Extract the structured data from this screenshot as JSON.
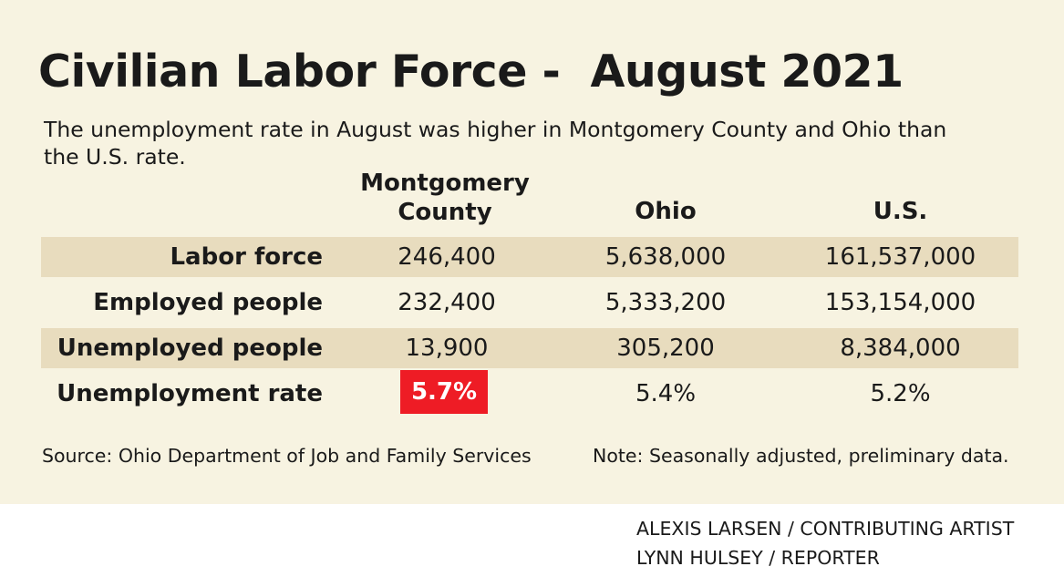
{
  "chart_data": {
    "type": "table",
    "title": "Civilian Labor Force -  August 2021",
    "subtitle": "The unemployment rate in August was higher in Montgomery County and Ohio than the U.S. rate.",
    "columns": [
      "Montgomery County",
      "Ohio",
      "U.S."
    ],
    "rows": [
      {
        "label": "Labor force",
        "values": [
          "246,400",
          "5,638,000",
          "161,537,000"
        ]
      },
      {
        "label": "Employed people",
        "values": [
          "232,400",
          "5,333,200",
          "153,154,000"
        ]
      },
      {
        "label": "Unemployed people",
        "values": [
          "13,900",
          "305,200",
          "8,384,000"
        ]
      },
      {
        "label": "Unemployment rate",
        "values": [
          "5.7%",
          "5.4%",
          "5.2%"
        ]
      }
    ],
    "highlight_color": "#ee1c25",
    "source": "Source: Ohio Department of Job and Family Services",
    "note": "Note: Seasonally adjusted, preliminary data."
  },
  "credits": {
    "artist": "ALEXIS LARSEN / CONTRIBUTING ARTIST",
    "reporter": "LYNN HULSEY / REPORTER"
  },
  "colors": {
    "background": "#f7f3e1",
    "row_shade": "#e8dcbe",
    "highlight": "#ee1c25"
  }
}
